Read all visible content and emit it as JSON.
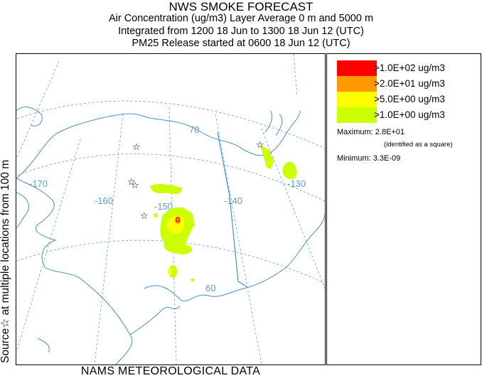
{
  "header": {
    "title": "NWS SMOKE FORECAST",
    "line1": "Air Concentration (ug/m3) Layer Average    0 m and  5000 m",
    "line2": "Integrated from 1200 18 Jun to 1300 18 Jun 12 (UTC)",
    "line3": "PM25 Release started at 0600 18 Jun 12 (UTC)"
  },
  "side_label": "Source☆  at multiple locations    from   100 m",
  "footer": "NAMS METEOROLOGICAL DATA",
  "map": {
    "longitude_labels": [
      "-170",
      "-160",
      "-150",
      "-140",
      "-130"
    ],
    "latitude_labels": [
      "70",
      "60"
    ],
    "colors": {
      "coastline": "#4a90c8",
      "graticule": "#5aa0d0",
      "border": "#4a90c8",
      "source_star": "#000000"
    }
  },
  "legend": {
    "items": [
      {
        "label": ">1.0E+02 ug/m3",
        "color": "#ff0000"
      },
      {
        "label": ">2.0E+01 ug/m3",
        "color": "#ff9900"
      },
      {
        "label": ">5.0E+00 ug/m3",
        "color": "#ffff00"
      },
      {
        "label": ">1.0E+00 ug/m3",
        "color": "#ccff00"
      }
    ],
    "maximum": "Maximum: 2.8E+01",
    "max_note": "(identified as a square)",
    "minimum": "Minimum: 3.3E-09"
  }
}
